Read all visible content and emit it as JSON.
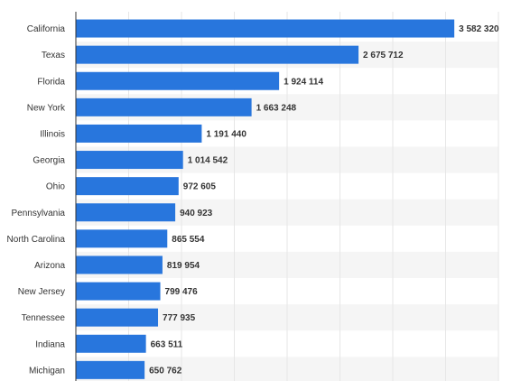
{
  "chart_data": {
    "type": "bar",
    "orientation": "horizontal",
    "categories": [
      "California",
      "Texas",
      "Florida",
      "New York",
      "Illinois",
      "Georgia",
      "Ohio",
      "Pennsylvania",
      "North Carolina",
      "Arizona",
      "New Jersey",
      "Tennessee",
      "Indiana",
      "Michigan"
    ],
    "values": [
      3582320,
      2675712,
      1924114,
      1663248,
      1191440,
      1014542,
      972605,
      940923,
      865554,
      819954,
      799476,
      777935,
      663511,
      650762
    ],
    "value_labels": [
      "3 582 320",
      "2 675 712",
      "1 924 114",
      "1 663 248",
      "1 191 440",
      "1 014 542",
      "972 605",
      "940 923",
      "865 554",
      "819 954",
      "799 476",
      "777 935",
      "663 511",
      "650 762"
    ],
    "xlim": [
      0,
      4000000
    ],
    "grid": true,
    "colors": {
      "bar": "#2876dd",
      "row_band": "#f5f5f5",
      "grid": "#e6e6e6",
      "axis": "#333333"
    }
  }
}
